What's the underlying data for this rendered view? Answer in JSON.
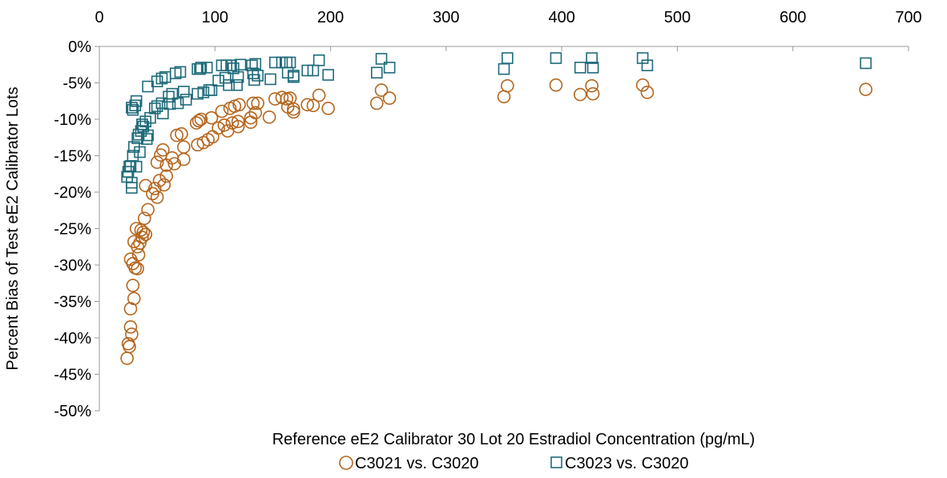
{
  "chart_data": {
    "type": "scatter",
    "xlabel": "Reference eE2 Calibrator 30 Lot 20 Estradiol Concentration (pg/mL)",
    "ylabel": "Percent Bias of Test eE2 Calibrator Lots",
    "xlim": [
      0,
      700
    ],
    "ylim": [
      -50,
      0
    ],
    "x_ticks": [
      0,
      100,
      200,
      300,
      400,
      500,
      600,
      700
    ],
    "y_ticks": [
      0,
      -5,
      -10,
      -15,
      -20,
      -25,
      -30,
      -35,
      -40,
      -45,
      -50
    ],
    "x_tick_labels": [
      "0",
      "100",
      "200",
      "300",
      "400",
      "500",
      "600",
      "700"
    ],
    "y_tick_labels": [
      "0%",
      "-5%",
      "-10%",
      "-15%",
      "-20%",
      "-25%",
      "-30%",
      "-35%",
      "-40%",
      "-45%",
      "-50%"
    ],
    "x_axis_position": "top",
    "grid": false,
    "legend_position": "bottom",
    "series": [
      {
        "name": "C3021 vs. C3020",
        "marker": "circle",
        "color": "#B5651D",
        "points": [
          [
            24,
            -42.8
          ],
          [
            25,
            -40.8
          ],
          [
            26,
            -41.2
          ],
          [
            27,
            -38.5
          ],
          [
            28,
            -39.5
          ],
          [
            27,
            -36.0
          ],
          [
            30,
            -34.6
          ],
          [
            29,
            -32.8
          ],
          [
            31,
            -30.4
          ],
          [
            27,
            -29.2
          ],
          [
            29,
            -29.8
          ],
          [
            33,
            -30.5
          ],
          [
            30,
            -26.8
          ],
          [
            34,
            -28.6
          ],
          [
            33,
            -27.5
          ],
          [
            35,
            -27.0
          ],
          [
            37,
            -26.2
          ],
          [
            38,
            -25.5
          ],
          [
            39,
            -23.6
          ],
          [
            40,
            -25.8
          ],
          [
            42,
            -22.4
          ],
          [
            32,
            -25.0
          ],
          [
            36,
            -25.2
          ],
          [
            40,
            -19.1
          ],
          [
            46,
            -20.2
          ],
          [
            50,
            -20.7
          ],
          [
            48,
            -19.5
          ],
          [
            52,
            -18.4
          ],
          [
            56,
            -19.0
          ],
          [
            58,
            -17.8
          ],
          [
            53,
            -14.9
          ],
          [
            50,
            -15.9
          ],
          [
            55,
            -14.2
          ],
          [
            58,
            -16.3
          ],
          [
            63,
            -15.3
          ],
          [
            65,
            -16.1
          ],
          [
            67,
            -12.2
          ],
          [
            71,
            -12.0
          ],
          [
            73,
            -13.8
          ],
          [
            73,
            -15.5
          ],
          [
            84,
            -10.5
          ],
          [
            86,
            -10.2
          ],
          [
            88,
            -10.0
          ],
          [
            90,
            -13.2
          ],
          [
            94,
            -12.8
          ],
          [
            97,
            -9.8
          ],
          [
            98,
            -12.4
          ],
          [
            85,
            -13.5
          ],
          [
            103,
            -11.2
          ],
          [
            106,
            -8.9
          ],
          [
            108,
            -10.8
          ],
          [
            111,
            -11.6
          ],
          [
            113,
            -8.5
          ],
          [
            115,
            -10.5
          ],
          [
            117,
            -8.2
          ],
          [
            120,
            -11.0
          ],
          [
            120,
            -10.3
          ],
          [
            121,
            -8.0
          ],
          [
            131,
            -9.8
          ],
          [
            131,
            -10.4
          ],
          [
            133,
            -7.8
          ],
          [
            135,
            -9.1
          ],
          [
            137,
            -7.8
          ],
          [
            147,
            -9.7
          ],
          [
            152,
            -7.2
          ],
          [
            158,
            -7.0
          ],
          [
            162,
            -7.2
          ],
          [
            165,
            -7.1
          ],
          [
            163,
            -8.3
          ],
          [
            168,
            -9.0
          ],
          [
            168,
            -8.6
          ],
          [
            180,
            -8.0
          ],
          [
            185,
            -8.1
          ],
          [
            190,
            -6.7
          ],
          [
            198,
            -8.5
          ],
          [
            240,
            -7.8
          ],
          [
            244,
            -6.0
          ],
          [
            251,
            -7.1
          ],
          [
            350,
            -6.9
          ],
          [
            353,
            -5.4
          ],
          [
            395,
            -5.3
          ],
          [
            416,
            -6.6
          ],
          [
            426,
            -5.4
          ],
          [
            427,
            -6.5
          ],
          [
            470,
            -5.3
          ],
          [
            474,
            -6.3
          ],
          [
            663,
            -5.9
          ]
        ]
      },
      {
        "name": "C3023 vs. C3020",
        "marker": "square",
        "color": "#1F6B7A",
        "points": [
          [
            24,
            -17.9
          ],
          [
            25,
            -17.2
          ],
          [
            26,
            -16.5
          ],
          [
            27,
            -16.4
          ],
          [
            28,
            -19.4
          ],
          [
            28,
            -18.7
          ],
          [
            29,
            -15.0
          ],
          [
            30,
            -13.8
          ],
          [
            32,
            -16.5
          ],
          [
            33,
            -12.6
          ],
          [
            34,
            -12.1
          ],
          [
            35,
            -14.5
          ],
          [
            36,
            -11.6
          ],
          [
            37,
            -10.7
          ],
          [
            38,
            -11.0
          ],
          [
            40,
            -10.3
          ],
          [
            41,
            -12.7
          ],
          [
            42,
            -12.2
          ],
          [
            29,
            -8.7
          ],
          [
            28,
            -8.4
          ],
          [
            31,
            -8.1
          ],
          [
            32,
            -7.5
          ],
          [
            44,
            -9.8
          ],
          [
            42,
            -5.5
          ],
          [
            48,
            -8.5
          ],
          [
            50,
            -8.2
          ],
          [
            50,
            -4.8
          ],
          [
            54,
            -7.8
          ],
          [
            54,
            -4.4
          ],
          [
            55,
            -9.2
          ],
          [
            57,
            -4.2
          ],
          [
            60,
            -6.9
          ],
          [
            61,
            -7.9
          ],
          [
            63,
            -6.5
          ],
          [
            66,
            -3.7
          ],
          [
            68,
            -7.8
          ],
          [
            70,
            -3.5
          ],
          [
            73,
            -6.2
          ],
          [
            75,
            -7.3
          ],
          [
            85,
            -3.1
          ],
          [
            87,
            -3.1
          ],
          [
            88,
            -2.9
          ],
          [
            85,
            -6.5
          ],
          [
            90,
            -6.3
          ],
          [
            93,
            -2.9
          ],
          [
            95,
            -6.0
          ],
          [
            97,
            -6.0
          ],
          [
            103,
            -4.7
          ],
          [
            106,
            -2.6
          ],
          [
            109,
            -4.3
          ],
          [
            110,
            -2.6
          ],
          [
            112,
            -5.3
          ],
          [
            114,
            -2.6
          ],
          [
            116,
            -3.0
          ],
          [
            119,
            -5.3
          ],
          [
            120,
            -4.2
          ],
          [
            122,
            -2.5
          ],
          [
            132,
            -2.6
          ],
          [
            133,
            -3.7
          ],
          [
            134,
            -4.6
          ],
          [
            135,
            -2.4
          ],
          [
            137,
            -4.0
          ],
          [
            148,
            -4.5
          ],
          [
            152,
            -2.2
          ],
          [
            158,
            -2.2
          ],
          [
            162,
            -2.2
          ],
          [
            163,
            -3.6
          ],
          [
            165,
            -2.2
          ],
          [
            168,
            -4.2
          ],
          [
            168,
            -4.0
          ],
          [
            180,
            -3.3
          ],
          [
            185,
            -3.3
          ],
          [
            190,
            -1.9
          ],
          [
            198,
            -3.9
          ],
          [
            240,
            -3.6
          ],
          [
            244,
            -1.7
          ],
          [
            251,
            -2.9
          ],
          [
            350,
            -3.1
          ],
          [
            353,
            -1.6
          ],
          [
            395,
            -1.6
          ],
          [
            416,
            -2.9
          ],
          [
            426,
            -1.6
          ],
          [
            427,
            -2.9
          ],
          [
            470,
            -1.6
          ],
          [
            474,
            -2.6
          ],
          [
            663,
            -2.3
          ]
        ]
      }
    ]
  }
}
